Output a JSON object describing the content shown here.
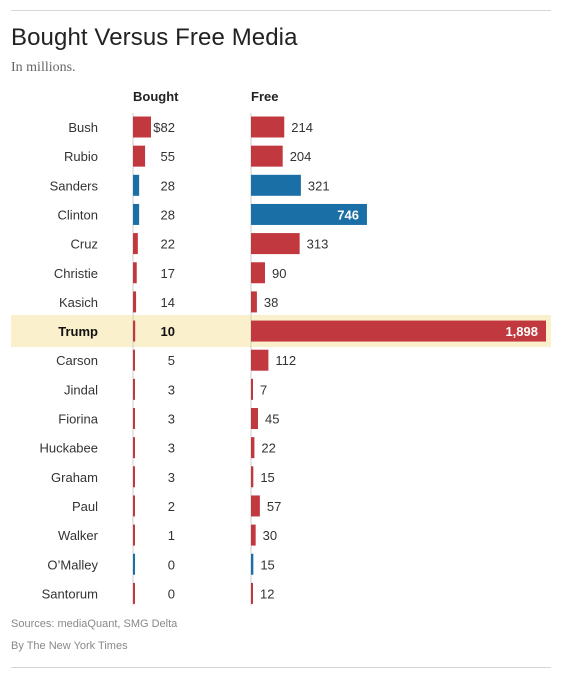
{
  "header": {
    "title": "Bought Versus Free Media",
    "subtitle": "In millions."
  },
  "chart_data": {
    "type": "bar",
    "categories": [
      "Bush",
      "Rubio",
      "Sanders",
      "Clinton",
      "Cruz",
      "Christie",
      "Kasich",
      "Trump",
      "Carson",
      "Jindal",
      "Fiorina",
      "Huckabee",
      "Graham",
      "Paul",
      "Walker",
      "O’Malley",
      "Santorum"
    ],
    "series": [
      {
        "name": "Bought",
        "values": [
          82,
          55,
          28,
          28,
          22,
          17,
          14,
          10,
          5,
          3,
          3,
          3,
          3,
          2,
          1,
          0,
          0
        ],
        "labels": [
          "$82",
          "55",
          "28",
          "28",
          "22",
          "17",
          "14",
          "10",
          "5",
          "3",
          "3",
          "3",
          "3",
          "2",
          "1",
          "0",
          "0"
        ]
      },
      {
        "name": "Free",
        "values": [
          214,
          204,
          321,
          746,
          313,
          90,
          38,
          1898,
          112,
          7,
          45,
          22,
          15,
          57,
          30,
          15,
          12
        ],
        "labels": [
          "214",
          "204",
          "321",
          "746",
          "313",
          "90",
          "38",
          "1,898",
          "112",
          "7",
          "45",
          "22",
          "15",
          "57",
          "30",
          "15",
          "12"
        ]
      }
    ],
    "party": [
      "R",
      "R",
      "D",
      "D",
      "R",
      "R",
      "R",
      "R",
      "R",
      "R",
      "R",
      "R",
      "R",
      "R",
      "R",
      "D",
      "R"
    ],
    "highlight": "Trump",
    "colors": {
      "republican": "#c1393f",
      "democrat": "#1a6fa6",
      "highlight_bg": "#fbf0cc",
      "baseline": "#cccccc"
    }
  },
  "footer": {
    "sources": "Sources: mediaQuant, SMG Delta",
    "credit": "By The New York Times"
  }
}
